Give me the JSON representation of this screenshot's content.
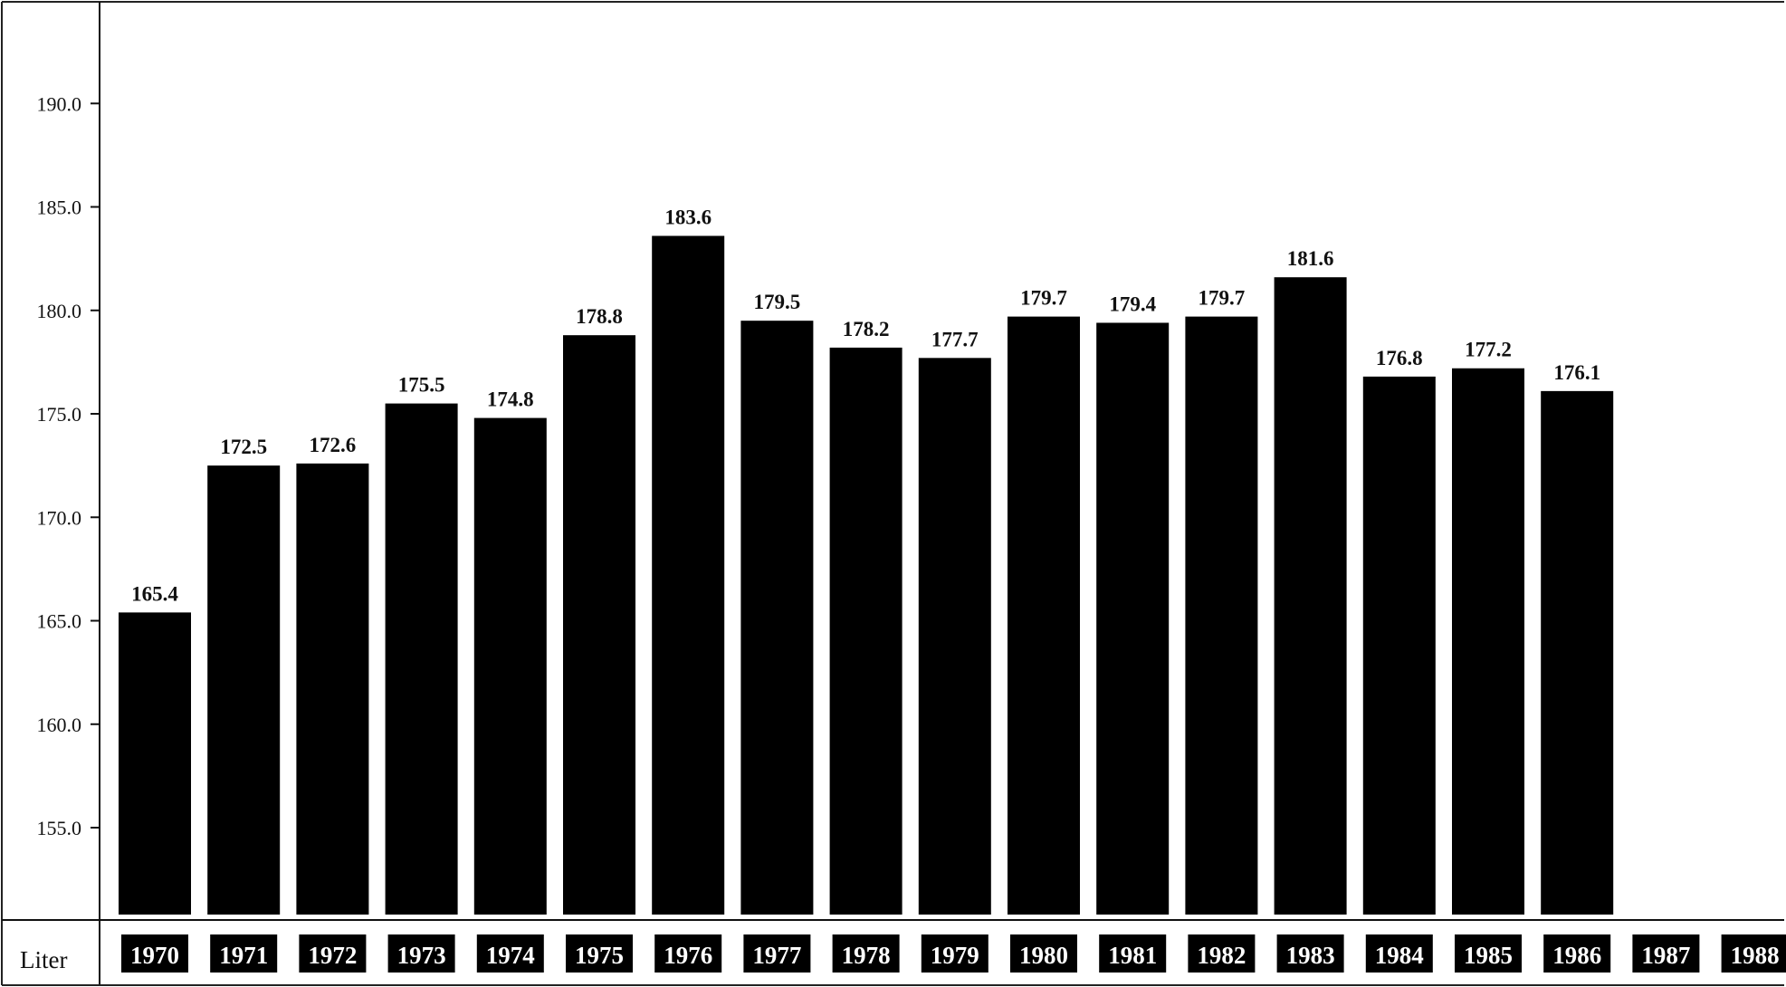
{
  "chart_data": {
    "type": "bar",
    "categories": [
      "1970",
      "1971",
      "1972",
      "1973",
      "1974",
      "1975",
      "1976",
      "1977",
      "1978",
      "1979",
      "1980",
      "1981",
      "1982",
      "1983",
      "1984",
      "1985",
      "1986",
      "1987",
      "1988"
    ],
    "values": [
      165.4,
      172.5,
      172.6,
      175.5,
      174.8,
      178.8,
      183.6,
      179.5,
      178.2,
      177.7,
      179.7,
      179.4,
      179.7,
      181.6,
      176.8,
      177.2,
      176.1,
      null,
      null
    ],
    "value_labels": [
      "165.4",
      "172.5",
      "172.6",
      "175.5",
      "174.8",
      "178.8",
      "183.6",
      "179.5",
      "178.2",
      "177.7",
      "179.7",
      "179.4",
      "179.7",
      "181.6",
      "176.8",
      "177.2",
      "176.1",
      "",
      ""
    ],
    "y_ticks": [
      "190.0",
      "185.0",
      "180.0",
      "175.0",
      "170.0",
      "165.0",
      "160.0",
      "155.0"
    ],
    "y_tick_values": [
      190,
      185,
      180,
      175,
      170,
      165,
      160,
      155
    ],
    "ylim": [
      150.8,
      195.0
    ],
    "unit_label": "Liter",
    "title": "",
    "xlabel": "",
    "ylabel": "",
    "grid": false,
    "bar_color": "#000000",
    "year_box_color": "#000000"
  }
}
